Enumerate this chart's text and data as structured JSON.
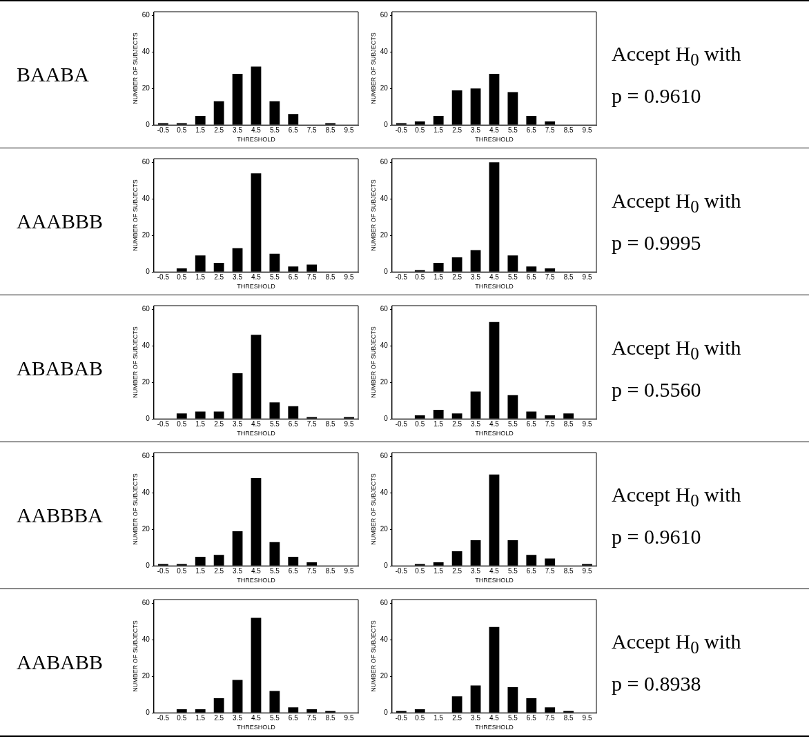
{
  "chart_data": [
    {
      "type": "other",
      "title": "BAABA"
    },
    {
      "type": "bar",
      "categories": [
        "-0.5",
        "0.5",
        "1.5",
        "2.5",
        "3.5",
        "4.5",
        "5.5",
        "6.5",
        "7.5",
        "8.5",
        "9.5"
      ],
      "values": [
        1,
        1,
        5,
        13,
        28,
        32,
        13,
        6,
        0,
        1,
        0
      ],
      "color": "#000000",
      "xlabel": "THRESHOLD",
      "ylabel": "NUMBER OF SUBJECTS",
      "ylim": [
        0,
        62
      ],
      "yticks": [
        0,
        20,
        40,
        60
      ]
    },
    {
      "type": "bar",
      "categories": [
        "-0.5",
        "0.5",
        "1.5",
        "2.5",
        "3.5",
        "4.5",
        "5.5",
        "6.5",
        "7.5",
        "8.5",
        "9.5"
      ],
      "values": [
        1,
        2,
        5,
        19,
        20,
        28,
        18,
        5,
        2,
        0,
        0
      ],
      "color": "#000000",
      "xlabel": "THRESHOLD",
      "ylabel": "NUMBER OF SUBJECTS",
      "ylim": [
        0,
        62
      ],
      "yticks": [
        0,
        20,
        40,
        60
      ]
    },
    {
      "type": "other",
      "annotations": [
        "Accept H$_{0}$ with",
        "p = 0.9610"
      ]
    },
    {
      "type": "other",
      "title": "AAABBB"
    },
    {
      "type": "bar",
      "categories": [
        "-0.5",
        "0.5",
        "1.5",
        "2.5",
        "3.5",
        "4.5",
        "5.5",
        "6.5",
        "7.5",
        "8.5",
        "9.5"
      ],
      "values": [
        0,
        2,
        9,
        5,
        13,
        54,
        10,
        3,
        4,
        0,
        0
      ],
      "color": "#000000",
      "xlabel": "THRESHOLD",
      "ylabel": "NUMBER OF SUBJECTS",
      "ylim": [
        0,
        62
      ],
      "yticks": [
        0,
        20,
        40,
        60
      ]
    },
    {
      "type": "bar",
      "categories": [
        "-0.5",
        "0.5",
        "1.5",
        "2.5",
        "3.5",
        "4.5",
        "5.5",
        "6.5",
        "7.5",
        "8.5",
        "9.5"
      ],
      "values": [
        0,
        1,
        5,
        8,
        12,
        60,
        9,
        3,
        2,
        0,
        0
      ],
      "color": "#000000",
      "xlabel": "THRESHOLD",
      "ylabel": "NUMBER OF SUBJECTS",
      "ylim": [
        0,
        62
      ],
      "yticks": [
        0,
        20,
        40,
        60
      ]
    },
    {
      "type": "other",
      "annotations": [
        "Accept H$_{0}$ with",
        "p = 0.9995"
      ]
    },
    {
      "type": "other",
      "title": "ABABAB"
    },
    {
      "type": "bar",
      "categories": [
        "-0.5",
        "0.5",
        "1.5",
        "2.5",
        "3.5",
        "4.5",
        "5.5",
        "6.5",
        "7.5",
        "8.5",
        "9.5"
      ],
      "values": [
        0,
        3,
        4,
        4,
        25,
        46,
        9,
        7,
        1,
        0,
        1
      ],
      "color": "#000000",
      "xlabel": "THRESHOLD",
      "ylabel": "NUMBER OF SUBJECTS",
      "ylim": [
        0,
        62
      ],
      "yticks": [
        0,
        20,
        40,
        60
      ]
    },
    {
      "type": "bar",
      "categories": [
        "-0.5",
        "0.5",
        "1.5",
        "2.5",
        "3.5",
        "4.5",
        "5.5",
        "6.5",
        "7.5",
        "8.5",
        "9.5"
      ],
      "values": [
        0,
        2,
        5,
        3,
        15,
        53,
        13,
        4,
        2,
        3,
        0
      ],
      "color": "#000000",
      "xlabel": "THRESHOLD",
      "ylabel": "NUMBER OF SUBJECTS",
      "ylim": [
        0,
        62
      ],
      "yticks": [
        0,
        20,
        40,
        60
      ]
    },
    {
      "type": "other",
      "annotations": [
        "Accept H$_{0}$ with",
        "p = 0.5560"
      ]
    },
    {
      "type": "other",
      "title": "AABBBA"
    },
    {
      "type": "bar",
      "categories": [
        "-0.5",
        "0.5",
        "1.5",
        "2.5",
        "3.5",
        "4.5",
        "5.5",
        "6.5",
        "7.5",
        "8.5",
        "9.5"
      ],
      "values": [
        1,
        1,
        5,
        6,
        19,
        48,
        13,
        5,
        2,
        0,
        0
      ],
      "color": "#000000",
      "xlabel": "THRESHOLD",
      "ylabel": "NUMBER OF SUBJECTS",
      "ylim": [
        0,
        62
      ],
      "yticks": [
        0,
        20,
        40,
        60
      ]
    },
    {
      "type": "bar",
      "categories": [
        "-0.5",
        "0.5",
        "1.5",
        "2.5",
        "3.5",
        "4.5",
        "5.5",
        "6.5",
        "7.5",
        "8.5",
        "9.5"
      ],
      "values": [
        0,
        1,
        2,
        8,
        14,
        50,
        14,
        6,
        4,
        0,
        1
      ],
      "color": "#000000",
      "xlabel": "THRESHOLD",
      "ylabel": "NUMBER OF SUBJECTS",
      "ylim": [
        0,
        62
      ],
      "yticks": [
        0,
        20,
        40,
        60
      ]
    },
    {
      "type": "other",
      "annotations": [
        "Accept H$_{0}$ with",
        "p = 0.9610"
      ]
    },
    {
      "type": "other",
      "title": "AABABB"
    },
    {
      "type": "bar",
      "categories": [
        "-0.5",
        "0.5",
        "1.5",
        "2.5",
        "3.5",
        "4.5",
        "5.5",
        "6.5",
        "7.5",
        "8.5",
        "9.5"
      ],
      "values": [
        0,
        2,
        2,
        8,
        18,
        52,
        12,
        3,
        2,
        1,
        0
      ],
      "color": "#000000",
      "xlabel": "THRESHOLD",
      "ylabel": "NUMBER OF SUBJECTS",
      "ylim": [
        0,
        62
      ],
      "yticks": [
        0,
        20,
        40,
        60
      ]
    },
    {
      "type": "bar",
      "categories": [
        "-0.5",
        "0.5",
        "1.5",
        "2.5",
        "3.5",
        "4.5",
        "5.5",
        "6.5",
        "7.5",
        "8.5",
        "9.5"
      ],
      "values": [
        1,
        2,
        0,
        9,
        15,
        47,
        14,
        8,
        3,
        1,
        0
      ],
      "color": "#000000",
      "xlabel": "THRESHOLD",
      "ylabel": "NUMBER OF SUBJECTS",
      "ylim": [
        0,
        62
      ],
      "yticks": [
        0,
        20,
        40,
        60
      ]
    },
    {
      "type": "other",
      "annotations": [
        "Accept H$_{0}$ with",
        "p = 0.8938"
      ]
    }
  ]
}
